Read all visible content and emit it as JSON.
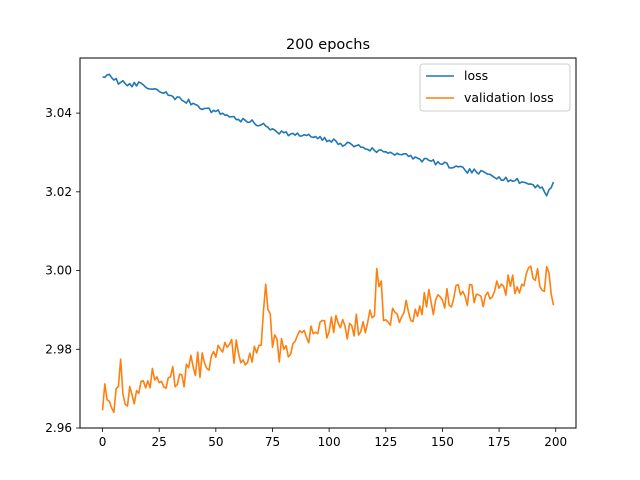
{
  "chart_data": {
    "type": "line",
    "title": "200 epochs",
    "xlabel": "",
    "ylabel": "",
    "xlim": [
      -9.95,
      208.95
    ],
    "ylim": [
      2.96,
      3.054
    ],
    "xticks": [
      0,
      25,
      50,
      75,
      100,
      125,
      150,
      175,
      200
    ],
    "xtick_labels": [
      "0",
      "25",
      "50",
      "75",
      "100",
      "125",
      "150",
      "175",
      "200"
    ],
    "yticks": [
      2.96,
      2.98,
      3.0,
      3.02,
      3.04
    ],
    "ytick_labels": [
      "2.96",
      "2.98",
      "3.00",
      "3.02",
      "3.04"
    ],
    "grid": false,
    "legend": "top-right",
    "x": {
      "start": 0,
      "end": 199,
      "step": 1
    },
    "series": [
      {
        "name": "loss",
        "color": "#1f77b4",
        "anchors": [
          [
            0,
            3.0492
          ],
          [
            2,
            3.0497
          ],
          [
            5,
            3.0484
          ],
          [
            8,
            3.0478
          ],
          [
            12,
            3.0475
          ],
          [
            15,
            3.0469
          ],
          [
            17,
            3.0476
          ],
          [
            20,
            3.0462
          ],
          [
            25,
            3.0455
          ],
          [
            30,
            3.0445
          ],
          [
            35,
            3.0433
          ],
          [
            40,
            3.0425
          ],
          [
            45,
            3.0412
          ],
          [
            50,
            3.0404
          ],
          [
            55,
            3.0395
          ],
          [
            60,
            3.0384
          ],
          [
            65,
            3.0377
          ],
          [
            70,
            3.037
          ],
          [
            75,
            3.036
          ],
          [
            80,
            3.035
          ],
          [
            85,
            3.0344
          ],
          [
            90,
            3.0343
          ],
          [
            95,
            3.0335
          ],
          [
            100,
            3.0331
          ],
          [
            105,
            3.0323
          ],
          [
            110,
            3.032
          ],
          [
            115,
            3.0313
          ],
          [
            120,
            3.0305
          ],
          [
            125,
            3.0302
          ],
          [
            130,
            3.0298
          ],
          [
            135,
            3.029
          ],
          [
            140,
            3.0283
          ],
          [
            145,
            3.0278
          ],
          [
            150,
            3.027
          ],
          [
            155,
            3.0262
          ],
          [
            160,
            3.0255
          ],
          [
            165,
            3.025
          ],
          [
            170,
            3.0245
          ],
          [
            175,
            3.0238
          ],
          [
            180,
            3.023
          ],
          [
            185,
            3.0225
          ],
          [
            190,
            3.0218
          ],
          [
            194,
            3.0212
          ],
          [
            196,
            3.019
          ],
          [
            197,
            3.0205
          ],
          [
            199,
            3.0225
          ]
        ],
        "noise": 0.0007,
        "seed": 7
      },
      {
        "name": "validation loss",
        "color": "#ff7f0e",
        "anchors": [
          [
            0,
            2.9645
          ],
          [
            1,
            2.9712
          ],
          [
            3,
            2.9668
          ],
          [
            5,
            2.964
          ],
          [
            8,
            2.9775
          ],
          [
            10,
            2.966
          ],
          [
            15,
            2.9695
          ],
          [
            20,
            2.972
          ],
          [
            25,
            2.9715
          ],
          [
            30,
            2.973
          ],
          [
            35,
            2.9735
          ],
          [
            40,
            2.9755
          ],
          [
            45,
            2.9765
          ],
          [
            50,
            2.978
          ],
          [
            55,
            2.9805
          ],
          [
            60,
            2.979
          ],
          [
            65,
            2.979
          ],
          [
            70,
            2.981
          ],
          [
            72,
            2.9965
          ],
          [
            75,
            2.9805
          ],
          [
            80,
            2.98
          ],
          [
            85,
            2.982
          ],
          [
            90,
            2.983
          ],
          [
            95,
            2.984
          ],
          [
            100,
            2.9845
          ],
          [
            105,
            2.9855
          ],
          [
            110,
            2.986
          ],
          [
            115,
            2.987
          ],
          [
            120,
            2.9885
          ],
          [
            121,
            3.0005
          ],
          [
            125,
            2.9875
          ],
          [
            130,
            2.989
          ],
          [
            135,
            2.9895
          ],
          [
            140,
            2.991
          ],
          [
            145,
            2.992
          ],
          [
            150,
            2.9925
          ],
          [
            155,
            2.993
          ],
          [
            160,
            2.9935
          ],
          [
            165,
            2.994
          ],
          [
            170,
            2.9945
          ],
          [
            175,
            2.9955
          ],
          [
            180,
            2.996
          ],
          [
            185,
            2.9965
          ],
          [
            190,
            2.998
          ],
          [
            192,
            3.0005
          ],
          [
            194,
            2.995
          ],
          [
            196,
            3.001
          ],
          [
            197,
            2.9995
          ],
          [
            199,
            2.9912
          ]
        ],
        "noise": 0.0035,
        "seed": 13
      }
    ]
  }
}
